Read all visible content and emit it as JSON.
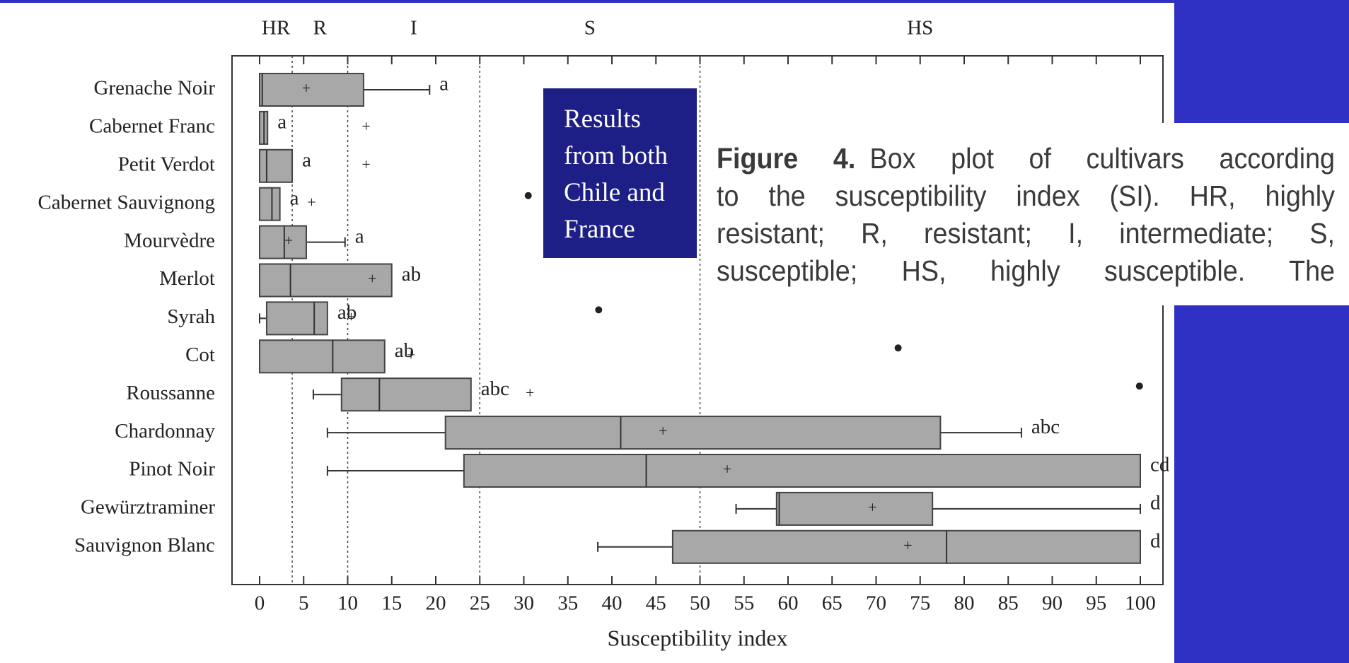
{
  "chart_data": {
    "type": "box",
    "xlabel": "Susceptibility index",
    "xlim": [
      0,
      100
    ],
    "xticks": [
      0,
      5,
      10,
      15,
      20,
      25,
      30,
      35,
      40,
      45,
      50,
      55,
      60,
      65,
      70,
      75,
      80,
      85,
      90,
      95,
      100
    ],
    "zone_bounds": [
      3.7,
      10,
      25,
      50
    ],
    "zones": [
      "HR",
      "R",
      "I",
      "S",
      "HS"
    ],
    "color": "#a8a8a8",
    "categories": [
      "Grenache Noir",
      "Cabernet Franc",
      "Petit Verdot",
      "Cabernet Sauvignong",
      "Mourvèdre",
      "Merlot",
      "Syrah",
      "Cot",
      "Roussanne",
      "Chardonnay",
      "Pinot Noir",
      "Gewürztraminer",
      "Sauvignon Blanc"
    ],
    "boxes": [
      {
        "low": 0,
        "q1": 0,
        "median": 0.3,
        "q3": 11.8,
        "high": 19.3,
        "mean": 5.3,
        "outliers": [],
        "letter": "a"
      },
      {
        "low": null,
        "q1": 0,
        "median": 0.5,
        "q3": 0.9,
        "high": null,
        "mean": 12.1,
        "outliers": [],
        "letter": "a"
      },
      {
        "low": null,
        "q1": 0,
        "median": 0.8,
        "q3": 3.7,
        "high": null,
        "mean": 12.1,
        "outliers": [],
        "letter": "a"
      },
      {
        "low": null,
        "q1": 0,
        "median": 1.4,
        "q3": 2.3,
        "high": null,
        "mean": 5.9,
        "outliers": [
          30.5
        ],
        "letter": "a"
      },
      {
        "low": null,
        "q1": 0,
        "median": 2.8,
        "q3": 5.3,
        "high": 9.7,
        "mean": 3.3,
        "outliers": [],
        "letter": "a"
      },
      {
        "low": null,
        "q1": 0,
        "median": 3.5,
        "q3": 15,
        "high": null,
        "mean": 12.8,
        "outliers": [],
        "letter": "ab"
      },
      {
        "low": 0,
        "q1": 0.8,
        "median": 6.2,
        "q3": 7.7,
        "high": null,
        "mean": 10.4,
        "outliers": [
          38.5
        ],
        "letter": "ab"
      },
      {
        "low": null,
        "q1": 0,
        "median": 8.3,
        "q3": 14.2,
        "high": null,
        "mean": 17.2,
        "outliers": [
          72.5
        ],
        "letter": "ab"
      },
      {
        "low": 6.1,
        "q1": 9.3,
        "median": 13.6,
        "q3": 24,
        "high": null,
        "mean": 30.7,
        "outliers": [
          99.9
        ],
        "letter": "abc"
      },
      {
        "low": 7.7,
        "q1": 21.1,
        "median": 41,
        "q3": 77.3,
        "high": 86.5,
        "mean": 45.8,
        "outliers": [],
        "letter": "abc"
      },
      {
        "low": 7.7,
        "q1": 23.2,
        "median": 43.9,
        "q3": 100,
        "high": null,
        "mean": 53.1,
        "outliers": [],
        "letter": "cd"
      },
      {
        "low": 54.1,
        "q1": 58.7,
        "median": 59,
        "q3": 76.4,
        "high": 100,
        "mean": 69.6,
        "outliers": [],
        "letter": "d"
      },
      {
        "low": 38.4,
        "q1": 46.9,
        "median": 78,
        "q3": 100,
        "high": null,
        "mean": 73.6,
        "outliers": [],
        "letter": "d"
      }
    ],
    "mean_symbol": "+"
  },
  "note_box": {
    "lines": [
      "Results",
      "from both",
      "Chile and",
      "France"
    ]
  },
  "caption": {
    "label": "Figure 4.",
    "lines": [
      "Box plot of cultivars according",
      "to the susceptibility index (SI). HR, highly",
      "resistant; R, resistant; I, intermediate; S,",
      "susceptible; HS, highly susceptible. The"
    ]
  }
}
